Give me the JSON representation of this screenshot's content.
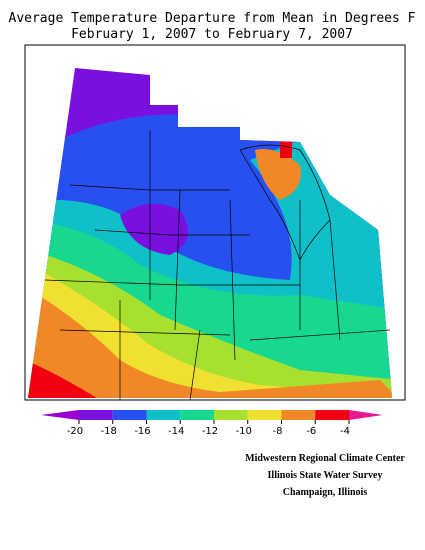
{
  "title": [
    "Average Temperature Departure from Mean in Degrees F",
    "February 1, 2007 to February 7, 2007"
  ],
  "colorbar": {
    "ticks": [
      -20,
      -18,
      -16,
      -14,
      -12,
      -10,
      -8,
      -6,
      -4
    ],
    "colors": [
      "#9a00d0",
      "#7a10e0",
      "#2850f0",
      "#10c0c8",
      "#18d890",
      "#a8e030",
      "#f0e030",
      "#f08828",
      "#f00010",
      "#e81890"
    ]
  },
  "credits": [
    "Midwestern Regional Climate Center",
    "Illinois State Water Survey",
    "Champaign, Illinois"
  ]
}
